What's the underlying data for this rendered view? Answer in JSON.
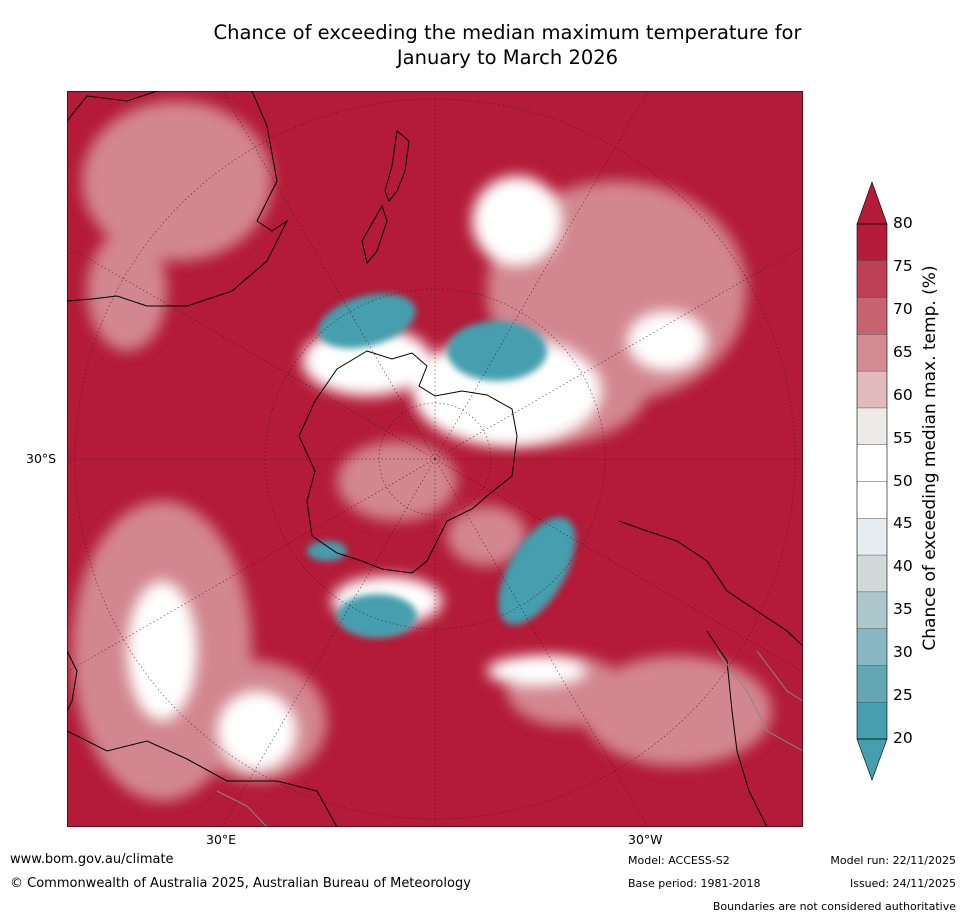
{
  "title": {
    "line1": "Chance of exceeding the median maximum temperature for",
    "line2": "January to March 2026"
  },
  "axes": {
    "lat_label": "30°S",
    "lon_labels": [
      "30°E",
      "30°W"
    ]
  },
  "colorbar": {
    "label": "Chance of exceeding median max. temp. (%)",
    "ticks": [
      "80",
      "75",
      "70",
      "65",
      "60",
      "55",
      "50",
      "45",
      "40",
      "35",
      "30",
      "25",
      "20"
    ],
    "colors_top_to_bottom": [
      "#b31b38",
      "#bd3f53",
      "#c7626f",
      "#d48c94",
      "#e2b9bd",
      "#eeeaea",
      "#ffffff",
      "#ffffff",
      "#e6ecef",
      "#d2d8da",
      "#adc8cc",
      "#87b7c2",
      "#64a7b3",
      "#459fae"
    ],
    "over_color": "#b31b38",
    "under_color": "#459fae"
  },
  "colors": {
    "high": "#b31b38",
    "mid_high": "#d48c94",
    "neutral": "#ffffff",
    "low": "#459fae",
    "coast": "#000000",
    "border": "#888888"
  },
  "footer": {
    "website": "www.bom.gov.au/climate",
    "copyright": "© Commonwealth of Australia 2025, Australian Bureau of Meteorology",
    "model": "Model: ACCESS-S2",
    "base_period": "Base period: 1981-2018",
    "model_run": "Model run: 22/11/2025",
    "issued": "Issued: 24/11/2025",
    "disclaimer": "Boundaries are not considered authoritative"
  }
}
